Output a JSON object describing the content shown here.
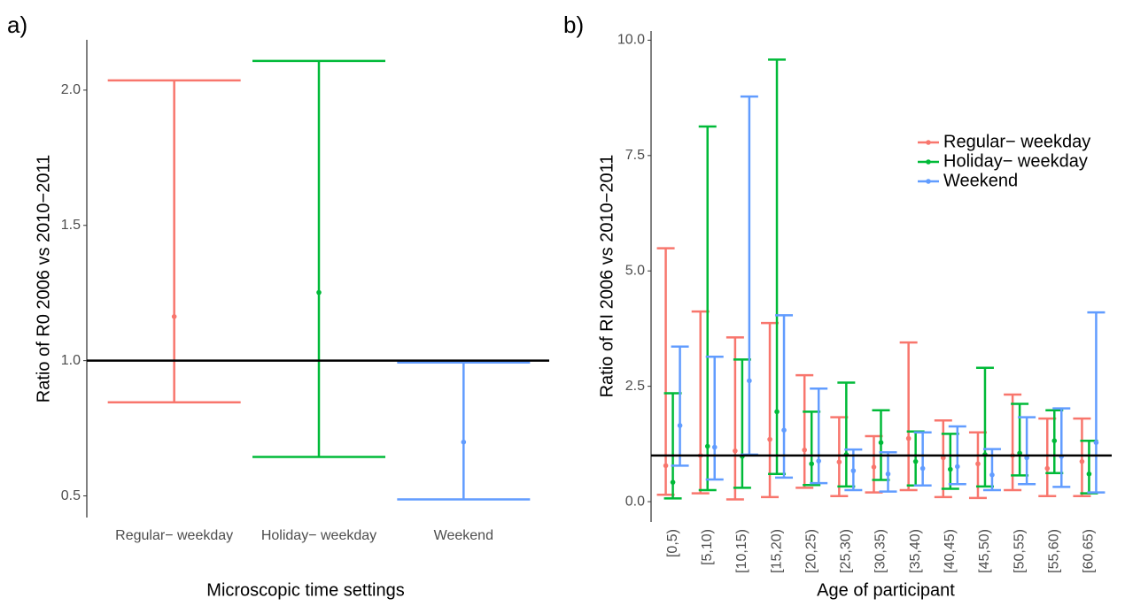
{
  "chart_data": [
    {
      "type": "errorbar",
      "label": "a)",
      "ylabel": "Ratio of R0 2006 vs 2010−2011",
      "xlabel": "Microscopic time settings",
      "categories": [
        "Regular− weekday",
        "Holiday− weekday",
        "Weekend"
      ],
      "colors": [
        "#f8766d",
        "#00ba38",
        "#619cff"
      ],
      "values": [
        1.163,
        1.252,
        0.699
      ],
      "lower": [
        0.846,
        0.644,
        0.487
      ],
      "upper": [
        2.036,
        2.108,
        0.993
      ],
      "hline": 1,
      "ylim": [
        0.42,
        2.186
      ],
      "yticks": [
        0.5,
        {
          "value": 1,
          "label": "1.0"
        },
        1.5,
        {
          "value": 2,
          "label": "2.0"
        }
      ]
    },
    {
      "type": "errorbar",
      "label": "b)",
      "ylabel": "Ratio of RI 2006 vs 2010−2011",
      "xlabel": "Age of participant",
      "categories": [
        "[0,5)",
        "[5,10)",
        "[10,15)",
        "[15,20)",
        "[20,25)",
        "[25,30)",
        "[30,35)",
        "[35,40)",
        "[40,45)",
        "[45,50)",
        "[50,55)",
        "[55,60)",
        "[60,65)"
      ],
      "series": [
        {
          "name": "Regular− weekday",
          "color": "#f8766d",
          "values": [
            0.78,
            1.0,
            1.1,
            1.35,
            1.12,
            0.86,
            0.75,
            1.37,
            0.95,
            0.82,
            1.0,
            0.72,
            0.87
          ],
          "lower": [
            0.15,
            0.18,
            0.05,
            0.1,
            0.3,
            0.12,
            0.2,
            0.25,
            0.1,
            0.08,
            0.25,
            0.12,
            0.12
          ],
          "upper": [
            5.49,
            4.12,
            3.56,
            3.87,
            2.74,
            1.83,
            1.42,
            3.45,
            1.76,
            1.5,
            2.32,
            1.8,
            1.8
          ]
        },
        {
          "name": "Holiday− weekday",
          "color": "#00ba38",
          "values": [
            0.42,
            1.2,
            0.98,
            1.95,
            0.82,
            1.02,
            1.28,
            0.87,
            0.7,
            1.02,
            1.05,
            1.32,
            0.6
          ],
          "lower": [
            0.07,
            0.25,
            0.3,
            0.6,
            0.36,
            0.33,
            0.47,
            0.35,
            0.28,
            0.33,
            0.57,
            0.62,
            0.18
          ],
          "upper": [
            2.35,
            8.13,
            3.08,
            9.58,
            1.95,
            2.58,
            1.98,
            1.52,
            1.47,
            2.9,
            2.12,
            1.98,
            1.32
          ]
        },
        {
          "name": "Weekend",
          "color": "#619cff",
          "values": [
            1.65,
            1.18,
            2.62,
            1.55,
            0.88,
            0.67,
            0.6,
            0.72,
            0.76,
            0.58,
            0.95,
            0.98,
            1.28
          ],
          "lower": [
            0.78,
            0.48,
            1.02,
            0.52,
            0.4,
            0.25,
            0.22,
            0.35,
            0.38,
            0.25,
            0.38,
            0.32,
            0.2
          ],
          "upper": [
            3.36,
            3.14,
            8.78,
            4.04,
            2.45,
            1.13,
            1.07,
            1.5,
            1.63,
            1.14,
            1.83,
            2.02,
            4.1
          ]
        }
      ],
      "hline": 1,
      "legend": "right",
      "ylim": [
        -0.44,
        10.2
      ],
      "yticks": [
        {
          "value": 0,
          "label": "0.0"
        },
        2.5,
        {
          "value": 5,
          "label": "5.0"
        },
        7.5,
        {
          "value": 10,
          "label": "10.0"
        }
      ]
    }
  ]
}
